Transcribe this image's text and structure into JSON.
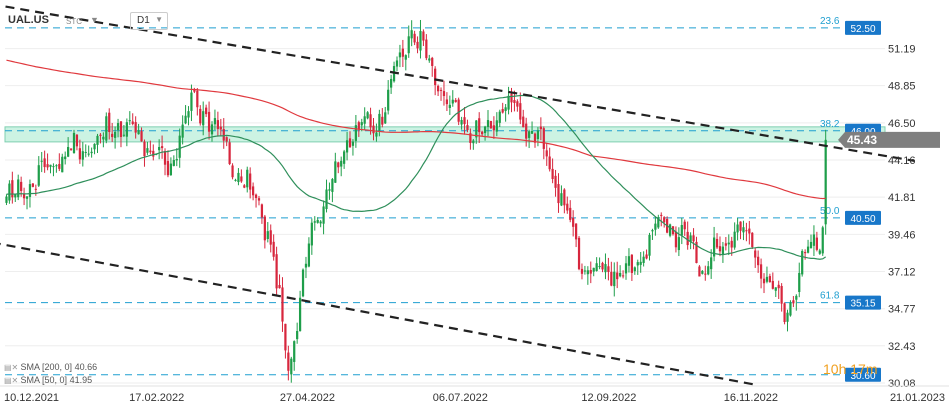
{
  "header": {
    "symbol": "UAL.US",
    "symbol_tag": "STC",
    "dropdown_icon": "triangle-down",
    "timeframe": "D1"
  },
  "legend": [
    {
      "label": "SMA [200, 0]",
      "value": "40.66"
    },
    {
      "label": "SMA [50, 0]",
      "value": "41.95"
    }
  ],
  "timer": "10h 17m",
  "colors": {
    "up": "#1e9e4a",
    "down": "#d7263d",
    "sma200": "#e0393e",
    "sma50": "#2f8f5b",
    "fib": "#1f9fd0",
    "zone": "#bff0dc",
    "trend": "#222222",
    "price_tag": "#7f7f7f",
    "level_tag": "#1877c9"
  },
  "chart_data": {
    "type": "candlestick",
    "symbol": "UAL.US",
    "timeframe": "D1",
    "y_ticks": [
      "51.19",
      "48.85",
      "46.50",
      "44.16",
      "41.81",
      "39.46",
      "37.12",
      "34.77",
      "32.43",
      "30.08"
    ],
    "x_ticks": [
      "10.12.2021",
      "17.02.2022",
      "27.04.2022",
      "06.07.2022",
      "12.09.2022",
      "16.11.2022",
      "21.01.2023"
    ],
    "last_price": "45.43",
    "ylim": [
      30.08,
      53.5
    ],
    "levels": [
      {
        "price": 52.5,
        "label": "52.50",
        "fib": "23.6"
      },
      {
        "price": 46.0,
        "label": "46.00",
        "fib": "38.2"
      },
      {
        "price": 40.5,
        "label": "40.50",
        "fib": "50.0"
      },
      {
        "price": 35.15,
        "label": "35.15",
        "fib": "61.8"
      },
      {
        "price": 30.6,
        "label": "30.60",
        "fib": ""
      }
    ],
    "zone": {
      "from": 45.3,
      "to": 46.25
    },
    "series": [
      {
        "name": "SMA [200, 0]",
        "value": 40.66
      },
      {
        "name": "SMA [50, 0]",
        "value": 41.95
      }
    ],
    "candle_count": 280,
    "waypoints": [
      [
        0,
        41.5
      ],
      [
        10,
        43.0
      ],
      [
        18,
        44.5
      ],
      [
        28,
        45.0
      ],
      [
        37,
        46.3
      ],
      [
        46,
        45.8
      ],
      [
        55,
        43.2
      ],
      [
        63,
        48.0
      ],
      [
        72,
        46.0
      ],
      [
        80,
        42.7
      ],
      [
        86,
        41.5
      ],
      [
        90,
        38.8
      ],
      [
        96,
        31.0
      ],
      [
        104,
        40.0
      ],
      [
        110,
        42.5
      ],
      [
        118,
        46.0
      ],
      [
        126,
        46.5
      ],
      [
        138,
        52.5
      ],
      [
        152,
        47.0
      ],
      [
        162,
        45.5
      ],
      [
        170,
        47.8
      ],
      [
        178,
        46.4
      ],
      [
        187,
        43.0
      ],
      [
        196,
        37.5
      ],
      [
        212,
        37.0
      ],
      [
        224,
        40.5
      ],
      [
        238,
        37.5
      ],
      [
        250,
        40.0
      ],
      [
        265,
        34.5
      ],
      [
        275,
        39.2
      ],
      [
        283,
        40.3
      ],
      [
        296,
        34.8
      ],
      [
        306,
        32.0
      ],
      [
        322,
        35.5
      ],
      [
        337,
        42.5
      ],
      [
        348,
        45.5
      ],
      [
        358,
        44.0
      ],
      [
        372,
        44.8
      ],
      [
        385,
        45.3
      ],
      [
        393,
        43.8
      ],
      [
        400,
        39.0
      ],
      [
        416,
        37.1
      ],
      [
        424,
        40.0
      ],
      [
        430,
        45.43
      ]
    ],
    "trendlines": [
      {
        "from": [
          "03.12.2021",
          54.0
        ],
        "to": [
          "30.01.2023",
          44.1
        ]
      },
      {
        "from": [
          "20.11.2021",
          39.3
        ],
        "to": [
          "17.11.2022",
          30.0
        ]
      }
    ]
  }
}
